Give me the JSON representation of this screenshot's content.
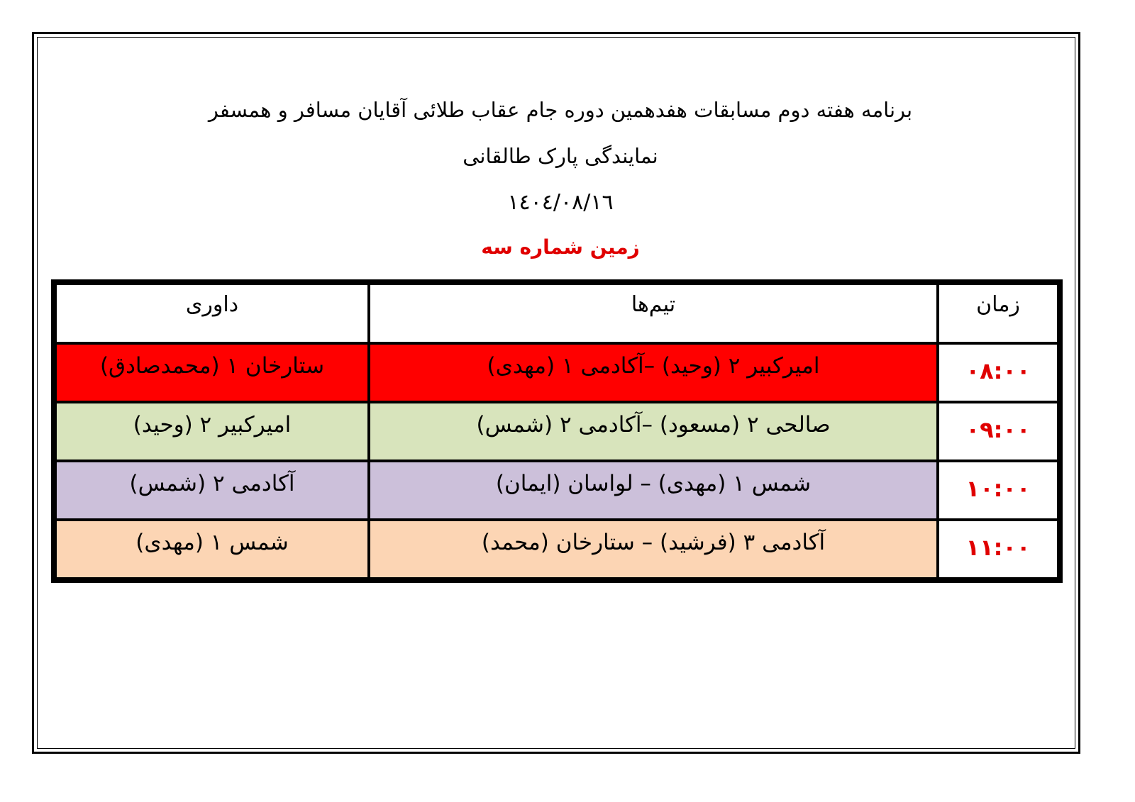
{
  "header": {
    "title_line1": "برنامه هفته دوم مسابقات هفدهمین دوره جام عقاب طلائی آقایان مسافر و همسفر",
    "title_line2": "نمایندگی پارک طالقانی",
    "date": "١٤٠٤/٠٨/١٦",
    "field": "زمین شماره سه",
    "field_color": "#e00000"
  },
  "table": {
    "columns": {
      "time": "زمان",
      "teams": "تیم‌ها",
      "referee": "داوری"
    },
    "rows": [
      {
        "time": "٠٨:٠٠",
        "teams": "امیرکبیر ۲ (وحید) –آکادمی ۱ (مهدی)",
        "referee": "ستارخان ۱ (محمدصادق)",
        "color": "#ff0000"
      },
      {
        "time": "٠٩:٠٠",
        "teams": "صالحی ۲ (مسعود) –آکادمی ۲ (شمس)",
        "referee": "امیرکبیر ۲ (وحید)",
        "color": "#d8e4bc"
      },
      {
        "time": "١٠:٠٠",
        "teams": "شمس ۱ (مهدی) – لواسان (ایمان)",
        "referee": "آکادمی ۲ (شمس)",
        "color": "#ccc0da"
      },
      {
        "time": "١١:٠٠",
        "teams": "آکادمی ۳ (فرشید) – ستارخان (محمد)",
        "referee": "شمس ۱ (مهدی)",
        "color": "#fcd5b4"
      }
    ]
  }
}
